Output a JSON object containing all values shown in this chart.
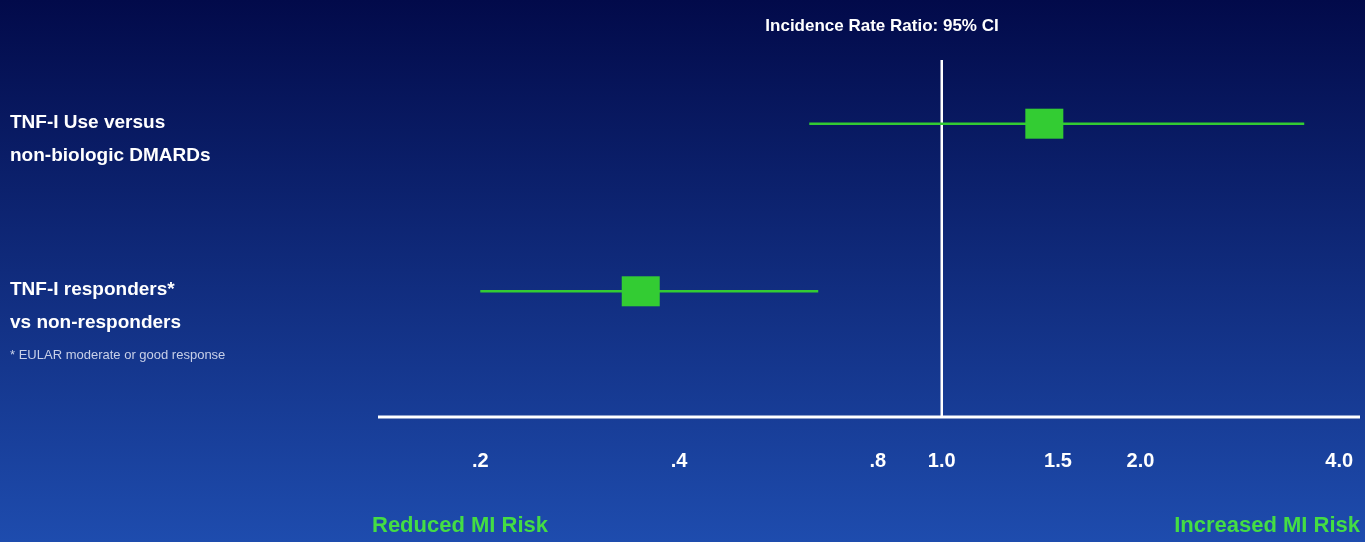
{
  "chart_data": {
    "type": "scatter",
    "orientation": "horizontal",
    "title": "Incidence Rate Ratio: 95% CI",
    "categories": [
      "TNF-I  Use versus\nnon-biologic DMARDs",
      "TNF-I  responders*\nvs non-responders"
    ],
    "values": [
      1.43,
      0.35
    ],
    "errors": [
      [
        0.63,
        3.54
      ],
      [
        0.2,
        0.65
      ]
    ],
    "color": "#33cc33",
    "marker": "square",
    "log": "x",
    "xlim": [
      0.14,
      4.3
    ],
    "xticks": [
      {
        "value": 0.2,
        "label": ".2"
      },
      {
        "value": 0.4,
        "label": ".4"
      },
      {
        "value": 0.8,
        "label": ".8"
      },
      {
        "value": 1.0,
        "label": "1.0"
      },
      {
        "value": 1.5,
        "label": "1.5"
      },
      {
        "value": 2.0,
        "label": "2.0"
      },
      {
        "value": 4.0,
        "label": "4.0"
      }
    ],
    "ref_lines": [
      {
        "axis": "x",
        "value": 1.0,
        "color": "#ffffff"
      }
    ],
    "annotations": [
      "* EULAR moderate or good response",
      "Reduced MI Risk",
      "Increased MI Risk"
    ]
  }
}
